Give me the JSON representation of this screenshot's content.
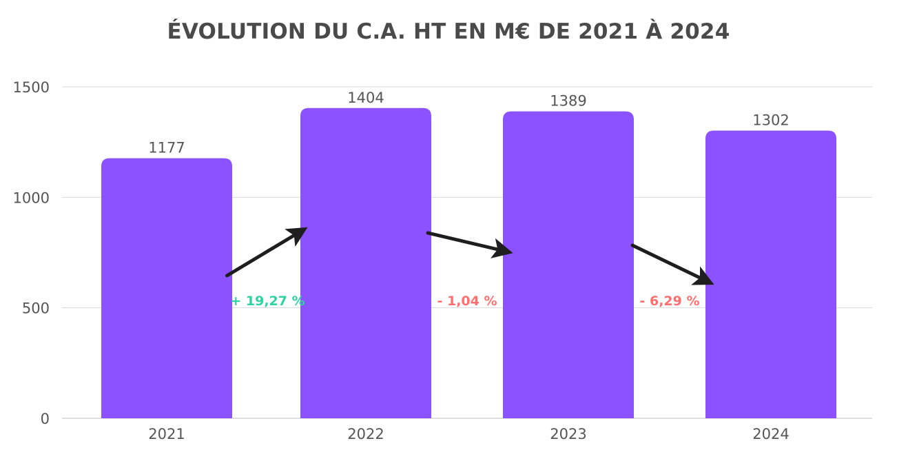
{
  "chart_data": {
    "type": "bar",
    "title": "ÉVOLUTION DU C.A. HT EN M€ DE 2021 À 2024",
    "xlabel": "",
    "ylabel": "",
    "categories": [
      "2021",
      "2022",
      "2023",
      "2024"
    ],
    "values": [
      1177,
      1404,
      1389,
      1302
    ],
    "data_labels": [
      "1177",
      "1404",
      "1389",
      "1302"
    ],
    "ylim": [
      0,
      1500
    ],
    "yticks": [
      0,
      500,
      1000,
      1500
    ],
    "ytick_labels": [
      "0",
      "500",
      "1000",
      "1500"
    ],
    "grid": true,
    "bar_color": "#8c52ff",
    "grid_color": "#d9d9d9",
    "annotations": [
      {
        "text": "+ 19,27 %",
        "direction": "up",
        "color": "#2ed3a0",
        "between": [
          "2021",
          "2022"
        ]
      },
      {
        "text": "- 1,04 %",
        "direction": "down",
        "color": "#ff6f6f",
        "between": [
          "2022",
          "2023"
        ]
      },
      {
        "text": "- 6,29 %",
        "direction": "down",
        "color": "#ff6f6f",
        "between": [
          "2023",
          "2024"
        ]
      }
    ],
    "arrow_color": "#1e1e1e"
  }
}
